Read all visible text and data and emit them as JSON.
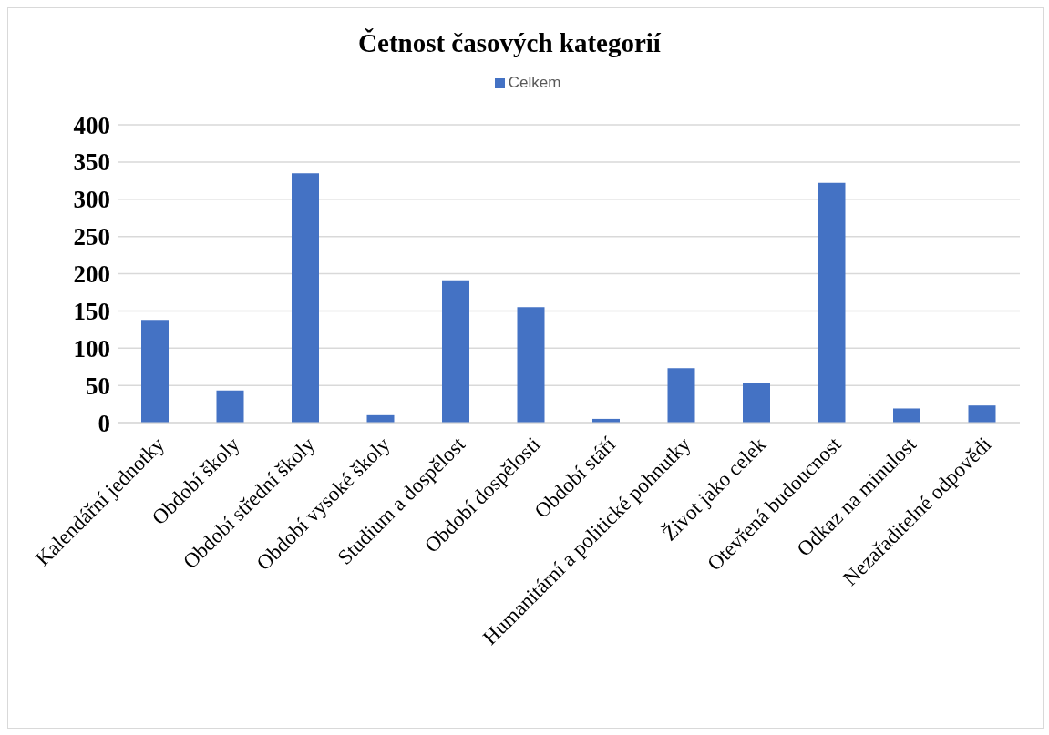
{
  "chart_data": {
    "type": "bar",
    "title": "Četnost časových kategorií",
    "categories": [
      "Kalendářní jednotky",
      "Období školy",
      "Období střední školy",
      "Období vysoké školy",
      "Studium a dospělost",
      "Období dospělosti",
      "Období stáří",
      "Humanitární a politické pohnutky",
      "Život jako celek",
      "Otevřená budoucnost",
      "Odkaz na minulost",
      "Nezařaditelné odpovědi"
    ],
    "series": [
      {
        "name": "Celkem",
        "color": "#4472c4",
        "values": [
          138,
          43,
          335,
          10,
          191,
          155,
          5,
          73,
          53,
          322,
          19,
          23
        ]
      }
    ],
    "ylim": [
      0,
      400
    ],
    "yticks": [
      0,
      50,
      100,
      150,
      200,
      250,
      300,
      350,
      400
    ],
    "grid": "y",
    "legend": "top"
  }
}
